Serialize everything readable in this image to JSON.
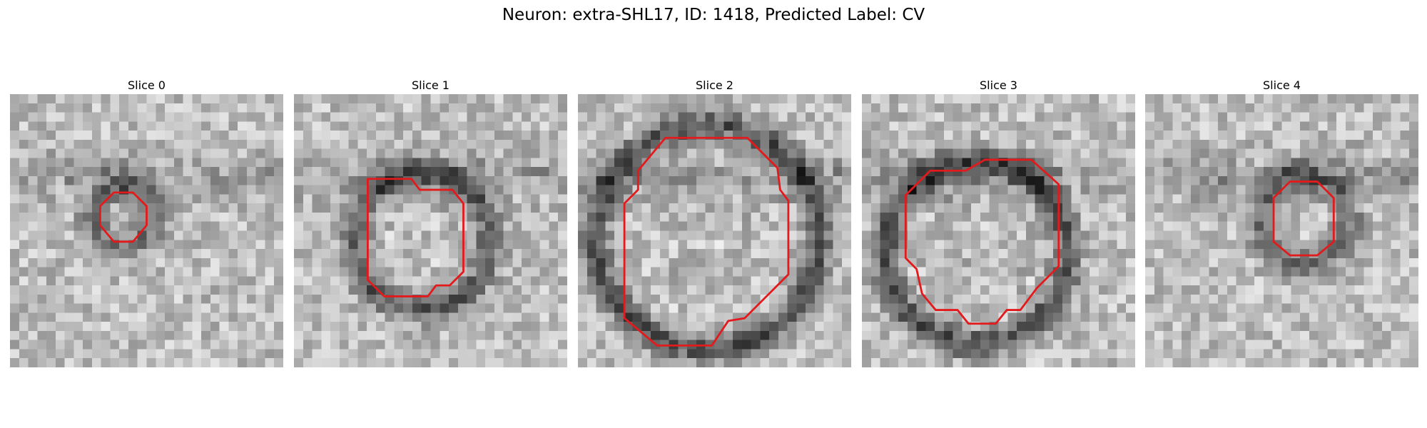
{
  "figure": {
    "title": "Neuron: extra-SHL17, ID: 1418, Predicted Label: CV"
  },
  "panels": [
    {
      "title": "Slice 0",
      "seed": 11,
      "dark_intensity": 0.55,
      "contour": [
        [
          -0.12,
          -0.14
        ],
        [
          -0.05,
          -0.14
        ],
        [
          0.0,
          -0.09
        ],
        [
          0.0,
          -0.02
        ],
        [
          -0.05,
          0.04
        ],
        [
          -0.12,
          0.04
        ],
        [
          -0.17,
          -0.02
        ],
        [
          -0.17,
          -0.09
        ]
      ]
    },
    {
      "title": "Slice 1",
      "seed": 23,
      "dark_intensity": 0.7,
      "contour": [
        [
          -0.23,
          -0.19
        ],
        [
          -0.07,
          -0.19
        ],
        [
          -0.04,
          -0.15
        ],
        [
          0.08,
          -0.15
        ],
        [
          0.12,
          -0.1
        ],
        [
          0.12,
          0.15
        ],
        [
          0.07,
          0.2
        ],
        [
          0.02,
          0.2
        ],
        [
          -0.01,
          0.24
        ],
        [
          -0.17,
          0.24
        ],
        [
          -0.23,
          0.18
        ]
      ]
    },
    {
      "title": "Slice 2",
      "seed": 37,
      "dark_intensity": 0.75,
      "contour": [
        [
          -0.18,
          -0.34
        ],
        [
          0.12,
          -0.34
        ],
        [
          0.23,
          -0.23
        ],
        [
          0.24,
          -0.15
        ],
        [
          0.27,
          -0.11
        ],
        [
          0.27,
          0.16
        ],
        [
          0.11,
          0.32
        ],
        [
          0.05,
          0.33
        ],
        [
          -0.01,
          0.42
        ],
        [
          -0.21,
          0.42
        ],
        [
          -0.33,
          0.32
        ],
        [
          -0.33,
          -0.1
        ],
        [
          -0.28,
          -0.15
        ],
        [
          -0.28,
          -0.22
        ]
      ]
    },
    {
      "title": "Slice 3",
      "seed": 41,
      "dark_intensity": 0.8,
      "contour": [
        [
          -0.05,
          -0.26
        ],
        [
          0.12,
          -0.26
        ],
        [
          0.22,
          -0.17
        ],
        [
          0.22,
          0.13
        ],
        [
          0.14,
          0.21
        ],
        [
          0.08,
          0.29
        ],
        [
          0.03,
          0.29
        ],
        [
          -0.01,
          0.34
        ],
        [
          -0.11,
          0.34
        ],
        [
          -0.15,
          0.29
        ],
        [
          -0.23,
          0.29
        ],
        [
          -0.28,
          0.23
        ],
        [
          -0.3,
          0.14
        ],
        [
          -0.34,
          0.1
        ],
        [
          -0.34,
          -0.13
        ],
        [
          -0.25,
          -0.22
        ],
        [
          -0.12,
          -0.22
        ]
      ]
    },
    {
      "title": "Slice 4",
      "seed": 53,
      "dark_intensity": 0.6,
      "contour": [
        [
          0.03,
          -0.18
        ],
        [
          0.13,
          -0.18
        ],
        [
          0.19,
          -0.12
        ],
        [
          0.19,
          0.04
        ],
        [
          0.13,
          0.09
        ],
        [
          0.03,
          0.09
        ],
        [
          -0.03,
          0.04
        ],
        [
          -0.03,
          -0.12
        ]
      ]
    }
  ],
  "colors": {
    "contour": "#e31a1c"
  }
}
